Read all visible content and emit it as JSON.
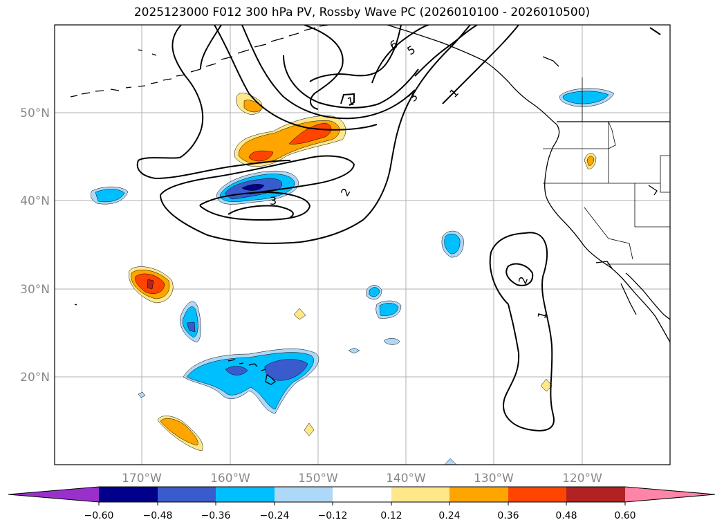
{
  "title": "2025123000 F012 300 hPa PV, Rossby Wave PC (2026010100 - 2026010500)",
  "colors": {
    "neg_060": "#9a30cc",
    "neg_048": "#00008b",
    "neg_036": "#3a5bcd",
    "neg_024": "#00bfff",
    "neg_012": "#add8f7",
    "zero": "#ffffff",
    "pos_012": "#ffe88a",
    "pos_024": "#ffa500",
    "pos_036": "#ff4500",
    "pos_048": "#b22222",
    "pos_060": "#ff85a8"
  },
  "lat_labels": [
    "50°N",
    "40°N",
    "30°N",
    "20°N"
  ],
  "lon_labels": [
    "170°W",
    "160°W",
    "150°W",
    "140°W",
    "130°W",
    "120°W"
  ],
  "colorbar_ticks": [
    "−0.60",
    "−0.48",
    "−0.36",
    "−0.24",
    "−0.12",
    "0.12",
    "0.24",
    "0.36",
    "0.48",
    "0.60"
  ],
  "contour_labels": [
    "6",
    "5",
    "3",
    "1",
    "1",
    "2",
    "3",
    "2",
    "1"
  ]
}
